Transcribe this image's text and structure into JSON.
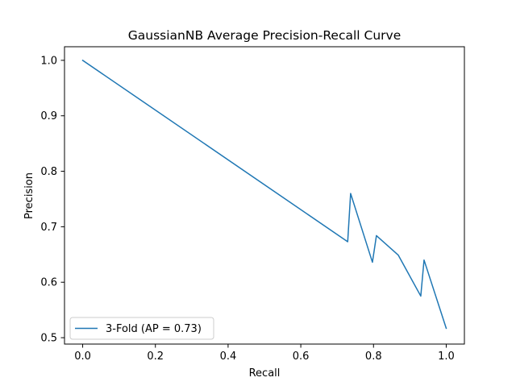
{
  "chart_data": {
    "type": "line",
    "title": "GaussianNB Average Precision-Recall Curve",
    "xlabel": "Recall",
    "ylabel": "Precision",
    "xlim": [
      -0.05,
      1.05
    ],
    "ylim": [
      0.4885,
      1.0245
    ],
    "xticks": [
      0.0,
      0.2,
      0.4,
      0.6,
      0.8,
      1.0
    ],
    "xtick_labels": [
      "0.0",
      "0.2",
      "0.4",
      "0.6",
      "0.8",
      "1.0"
    ],
    "yticks": [
      0.5,
      0.6,
      0.7,
      0.8,
      0.9,
      1.0
    ],
    "ytick_labels": [
      "0.5",
      "0.6",
      "0.7",
      "0.8",
      "0.9",
      "1.0"
    ],
    "grid": false,
    "legend_position": "lower-left",
    "series": [
      {
        "name": "3-Fold (AP = 0.73)",
        "color": "#1f77b4",
        "x": [
          0.0,
          0.729,
          0.737,
          0.797,
          0.808,
          0.868,
          0.93,
          0.939,
          1.0
        ],
        "y": [
          1.0,
          0.673,
          0.76,
          0.636,
          0.684,
          0.649,
          0.575,
          0.64,
          0.517
        ]
      }
    ]
  }
}
